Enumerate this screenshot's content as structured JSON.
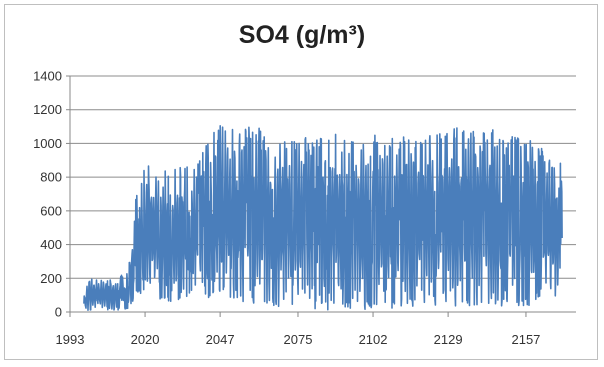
{
  "chart_data": {
    "type": "line",
    "title": "SO4 (g/m³)",
    "xlabel": "",
    "ylabel": "",
    "x_ticks": [
      "1993",
      "2020",
      "2047",
      "2075",
      "2102",
      "2129",
      "2157"
    ],
    "x_tick_values": [
      1993,
      2020,
      2047,
      2075,
      2102,
      2129,
      2157
    ],
    "xlim": [
      1993,
      2175
    ],
    "y_ticks": [
      "0",
      "200",
      "400",
      "600",
      "800",
      "1000",
      "1200",
      "1400"
    ],
    "ylim": [
      0,
      1400
    ],
    "grid": true,
    "legend": "none",
    "series": [
      {
        "color": "#4a7ebb",
        "x_start": 1998,
        "x_end": 2170,
        "envelope": [
          {
            "x": 1998,
            "min": 0,
            "max": 100
          },
          {
            "x": 2000,
            "min": 10,
            "max": 210
          },
          {
            "x": 2005,
            "min": 10,
            "max": 190
          },
          {
            "x": 2010,
            "min": 10,
            "max": 200
          },
          {
            "x": 2014,
            "min": 20,
            "max": 250
          },
          {
            "x": 2017,
            "min": 100,
            "max": 720
          },
          {
            "x": 2020,
            "min": 100,
            "max": 870
          },
          {
            "x": 2030,
            "min": 60,
            "max": 860
          },
          {
            "x": 2038,
            "min": 100,
            "max": 870
          },
          {
            "x": 2042,
            "min": 80,
            "max": 1020
          },
          {
            "x": 2047,
            "min": 100,
            "max": 1110
          },
          {
            "x": 2060,
            "min": 40,
            "max": 1100
          },
          {
            "x": 2075,
            "min": 20,
            "max": 1030
          },
          {
            "x": 2090,
            "min": 10,
            "max": 1060
          },
          {
            "x": 2102,
            "min": 10,
            "max": 1070
          },
          {
            "x": 2115,
            "min": 30,
            "max": 1050
          },
          {
            "x": 2129,
            "min": 20,
            "max": 1090
          },
          {
            "x": 2143,
            "min": 30,
            "max": 1100
          },
          {
            "x": 2157,
            "min": 30,
            "max": 1050
          },
          {
            "x": 2170,
            "min": 80,
            "max": 880
          }
        ]
      }
    ]
  }
}
